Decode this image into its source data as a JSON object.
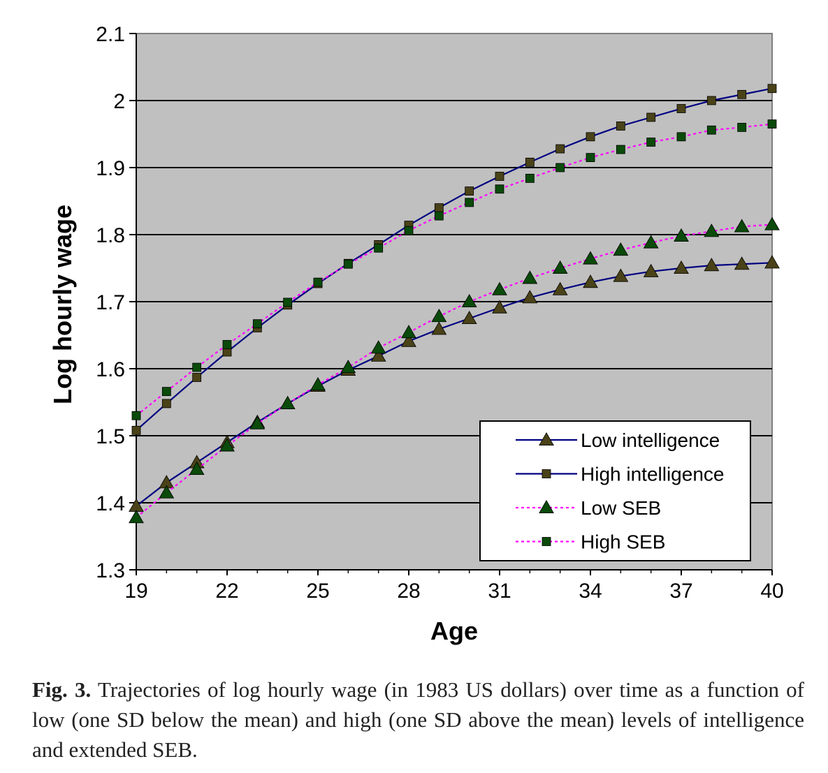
{
  "chart_data": {
    "type": "line",
    "xlabel": "Age",
    "ylabel": "Log hourly wage",
    "xlim": [
      19,
      40
    ],
    "ylim": [
      1.3,
      2.1
    ],
    "xticks": [
      19,
      22,
      25,
      28,
      31,
      34,
      37,
      40
    ],
    "xtick_labels": [
      "19",
      "22",
      "25",
      "28",
      "31",
      "34",
      "37",
      "40"
    ],
    "yticks": [
      1.3,
      1.4,
      1.5,
      1.6,
      1.7,
      1.8,
      1.9,
      2.0,
      2.1
    ],
    "ytick_labels": [
      "1.3",
      "1.4",
      "1.5",
      "1.6",
      "1.7",
      "1.8",
      "1.9",
      "2",
      "2.1"
    ],
    "gridlines": "horizontal",
    "plot_background": "#c0c0c0",
    "legend_position": "lower-right",
    "x": [
      19,
      20,
      21,
      22,
      23,
      24,
      25,
      26,
      27,
      28,
      29,
      30,
      31,
      32,
      33,
      34,
      35,
      36,
      37,
      38,
      39,
      40
    ],
    "series": [
      {
        "name": "Low intelligence",
        "marker": "triangle",
        "line_style": "solid",
        "line_color": "#000080",
        "marker_color": "#4a4218",
        "values": [
          1.395,
          1.43,
          1.46,
          1.49,
          1.52,
          1.548,
          1.574,
          1.598,
          1.619,
          1.641,
          1.659,
          1.675,
          1.691,
          1.706,
          1.718,
          1.729,
          1.738,
          1.745,
          1.75,
          1.754,
          1.756,
          1.758
        ]
      },
      {
        "name": "High intelligence",
        "marker": "square",
        "line_style": "solid",
        "line_color": "#000080",
        "marker_color": "#4a4218",
        "values": [
          1.508,
          1.548,
          1.587,
          1.625,
          1.661,
          1.695,
          1.727,
          1.757,
          1.785,
          1.814,
          1.84,
          1.865,
          1.887,
          1.908,
          1.928,
          1.946,
          1.962,
          1.975,
          1.988,
          2.0,
          2.009,
          2.018
        ]
      },
      {
        "name": "Low SEB",
        "marker": "triangle",
        "line_style": "dotted",
        "line_color": "#ff00ff",
        "marker_color": "#0a4a0a",
        "values": [
          1.378,
          1.415,
          1.45,
          1.485,
          1.518,
          1.548,
          1.576,
          1.602,
          1.631,
          1.654,
          1.678,
          1.7,
          1.718,
          1.735,
          1.75,
          1.764,
          1.777,
          1.788,
          1.798,
          1.805,
          1.812,
          1.815
        ]
      },
      {
        "name": "High SEB",
        "marker": "square",
        "line_style": "dotted",
        "line_color": "#ff00ff",
        "marker_color": "#0a4a0a",
        "values": [
          1.53,
          1.566,
          1.602,
          1.636,
          1.667,
          1.699,
          1.729,
          1.756,
          1.78,
          1.806,
          1.828,
          1.848,
          1.868,
          1.884,
          1.9,
          1.915,
          1.927,
          1.938,
          1.946,
          1.956,
          1.96,
          1.965
        ]
      }
    ]
  },
  "caption": {
    "label": "Fig. 3.",
    "text": "Trajectories of log hourly wage (in 1983 US dollars) over time as a function of low (one SD below the mean) and high (one SD above the mean) levels of intelligence and extended SEB."
  }
}
